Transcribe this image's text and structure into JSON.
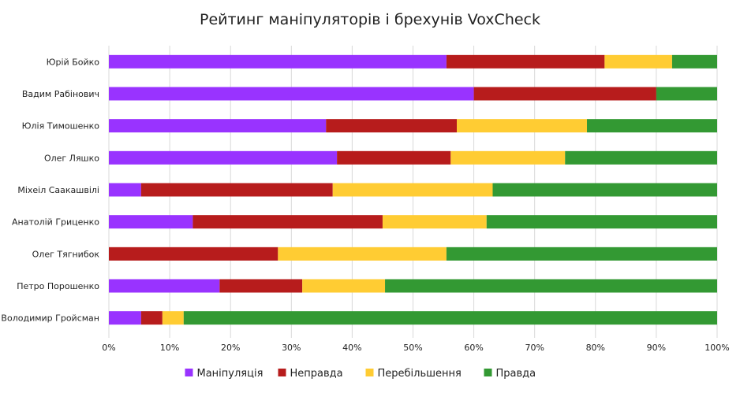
{
  "chart_data": {
    "type": "bar",
    "orientation": "horizontal",
    "stacked": "percent",
    "title": "Рейтинг маніпуляторів  і брехунів VoxCheck",
    "categories": [
      "Юрій Бойко",
      "Вадим Рабінович",
      "Юлія Тимошенко",
      "Олег Ляшко",
      "Міхеіл Саакашвілі",
      "Анатолій Гриценко",
      "Олег Тягнибок",
      "Петро Порошенко",
      "Володимир Гройсман"
    ],
    "series": [
      {
        "name": "Маніпуляція",
        "color": "#9933ff",
        "values": [
          55.5,
          60,
          35.7,
          37.5,
          5.3,
          13.8,
          0,
          18.2,
          5.3
        ]
      },
      {
        "name": "Неправда",
        "color": "#b71c1c",
        "values": [
          26,
          30,
          21.5,
          18.7,
          31.5,
          31.2,
          27.8,
          13.6,
          3.5
        ]
      },
      {
        "name": "Перебільшення",
        "color": "#ffcc33",
        "values": [
          11.1,
          0,
          21.4,
          18.8,
          26.3,
          17.1,
          27.7,
          13.6,
          3.5
        ]
      },
      {
        "name": "Правда",
        "color": "#339933",
        "values": [
          7.4,
          10,
          21.4,
          25,
          36.9,
          37.9,
          44.5,
          54.6,
          87.7
        ]
      }
    ],
    "xlim": [
      0,
      100
    ],
    "xticks": [
      "0%",
      "10%",
      "20%",
      "30%",
      "40%",
      "50%",
      "60%",
      "70%",
      "80%",
      "90%",
      "100%"
    ],
    "grid": true,
    "legend_position": "bottom"
  }
}
